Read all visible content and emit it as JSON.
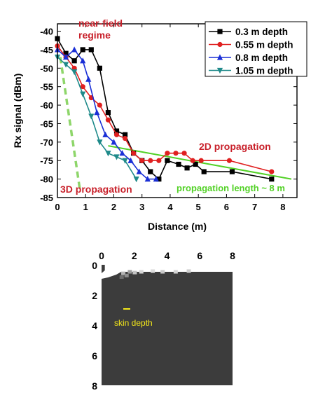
{
  "chart_data": [
    {
      "type": "line",
      "xlabel": "Distance (m)",
      "ylabel": "Rx signal (dBm)",
      "xlim": [
        0,
        8.5
      ],
      "ylim": [
        -85,
        -38
      ],
      "xticks": [
        0,
        1,
        2,
        3,
        4,
        5,
        6,
        7,
        8
      ],
      "yticks": [
        -40,
        -45,
        -50,
        -55,
        -60,
        -65,
        -70,
        -75,
        -80,
        -85
      ],
      "legend_position": "top-right",
      "series": [
        {
          "name": "0.3 m depth",
          "color": "#000000",
          "marker": "square",
          "x": [
            0,
            0.3,
            0.6,
            0.9,
            1.2,
            1.5,
            1.8,
            2.1,
            2.4,
            2.7,
            3.0,
            3.3,
            3.6,
            3.9,
            4.3,
            4.6,
            4.9,
            5.2,
            6.2,
            7.6
          ],
          "y": [
            -42,
            -46,
            -48,
            -45,
            -45,
            -50,
            -62,
            -67,
            -68,
            -73,
            -75,
            -78,
            -80,
            -75,
            -76,
            -77,
            -76,
            -78,
            -78,
            -80
          ]
        },
        {
          "name": "0.55 m depth",
          "color": "#e02020",
          "marker": "circle",
          "x": [
            0,
            0.3,
            0.6,
            0.9,
            1.2,
            1.5,
            1.8,
            2.1,
            2.4,
            2.7,
            3.0,
            3.3,
            3.6,
            3.9,
            4.2,
            4.5,
            4.8,
            5.1,
            6.1,
            7.6
          ],
          "y": [
            -44,
            -47,
            -50,
            -55,
            -58,
            -60,
            -64,
            -68,
            -69,
            -73,
            -75,
            -75,
            -75,
            -73,
            -73,
            -73,
            -75,
            -75,
            -75,
            -78
          ]
        },
        {
          "name": "0.8 m depth",
          "color": "#1a2fd6",
          "marker": "triangle-up",
          "x": [
            0,
            0.3,
            0.6,
            0.9,
            1.1,
            1.4,
            1.7,
            2.0,
            2.3,
            2.6,
            2.9,
            3.2,
            3.5
          ],
          "y": [
            -45,
            -47,
            -45,
            -48,
            -53,
            -62,
            -68,
            -70,
            -73,
            -75,
            -78,
            -80,
            -80
          ]
        },
        {
          "name": "1.05 m depth",
          "color": "#1f8a8a",
          "marker": "triangle-down",
          "x": [
            0,
            0.3,
            0.6,
            0.9,
            1.2,
            1.5,
            1.8,
            2.1,
            2.4,
            2.8
          ],
          "y": [
            -47,
            -49,
            -51,
            -57,
            -63,
            -70,
            -73,
            -74,
            -75,
            -80
          ]
        }
      ],
      "annotations": [
        {
          "text": "near-field\nregime",
          "color": "#c8202a"
        },
        {
          "text": "2D propagation",
          "color": "#c8202a"
        },
        {
          "text": "3D propagation",
          "color": "#c8202a"
        },
        {
          "text": "propagation length ~ 8 m",
          "color": "#52d126"
        }
      ],
      "guide_lines": [
        {
          "style": "solid",
          "color": "#52d126",
          "x": [
            1.8,
            8.3
          ],
          "y": [
            -71,
            -80
          ]
        },
        {
          "style": "dashed",
          "color": "#8ed66a",
          "x": [
            0.1,
            0.8
          ],
          "y": [
            -47,
            -83
          ]
        }
      ]
    },
    {
      "type": "heatmap",
      "xticks": [
        0,
        2,
        4,
        6,
        8
      ],
      "yticks": [
        0,
        2,
        4,
        6,
        8
      ],
      "xlim": [
        0,
        8
      ],
      "ylim": [
        0,
        8
      ],
      "colors": {
        "background": "#3c3c3c",
        "highlight": "#ffffff"
      },
      "annotations": [
        {
          "text": "skin depth",
          "color": "#f5e81a"
        }
      ]
    }
  ]
}
